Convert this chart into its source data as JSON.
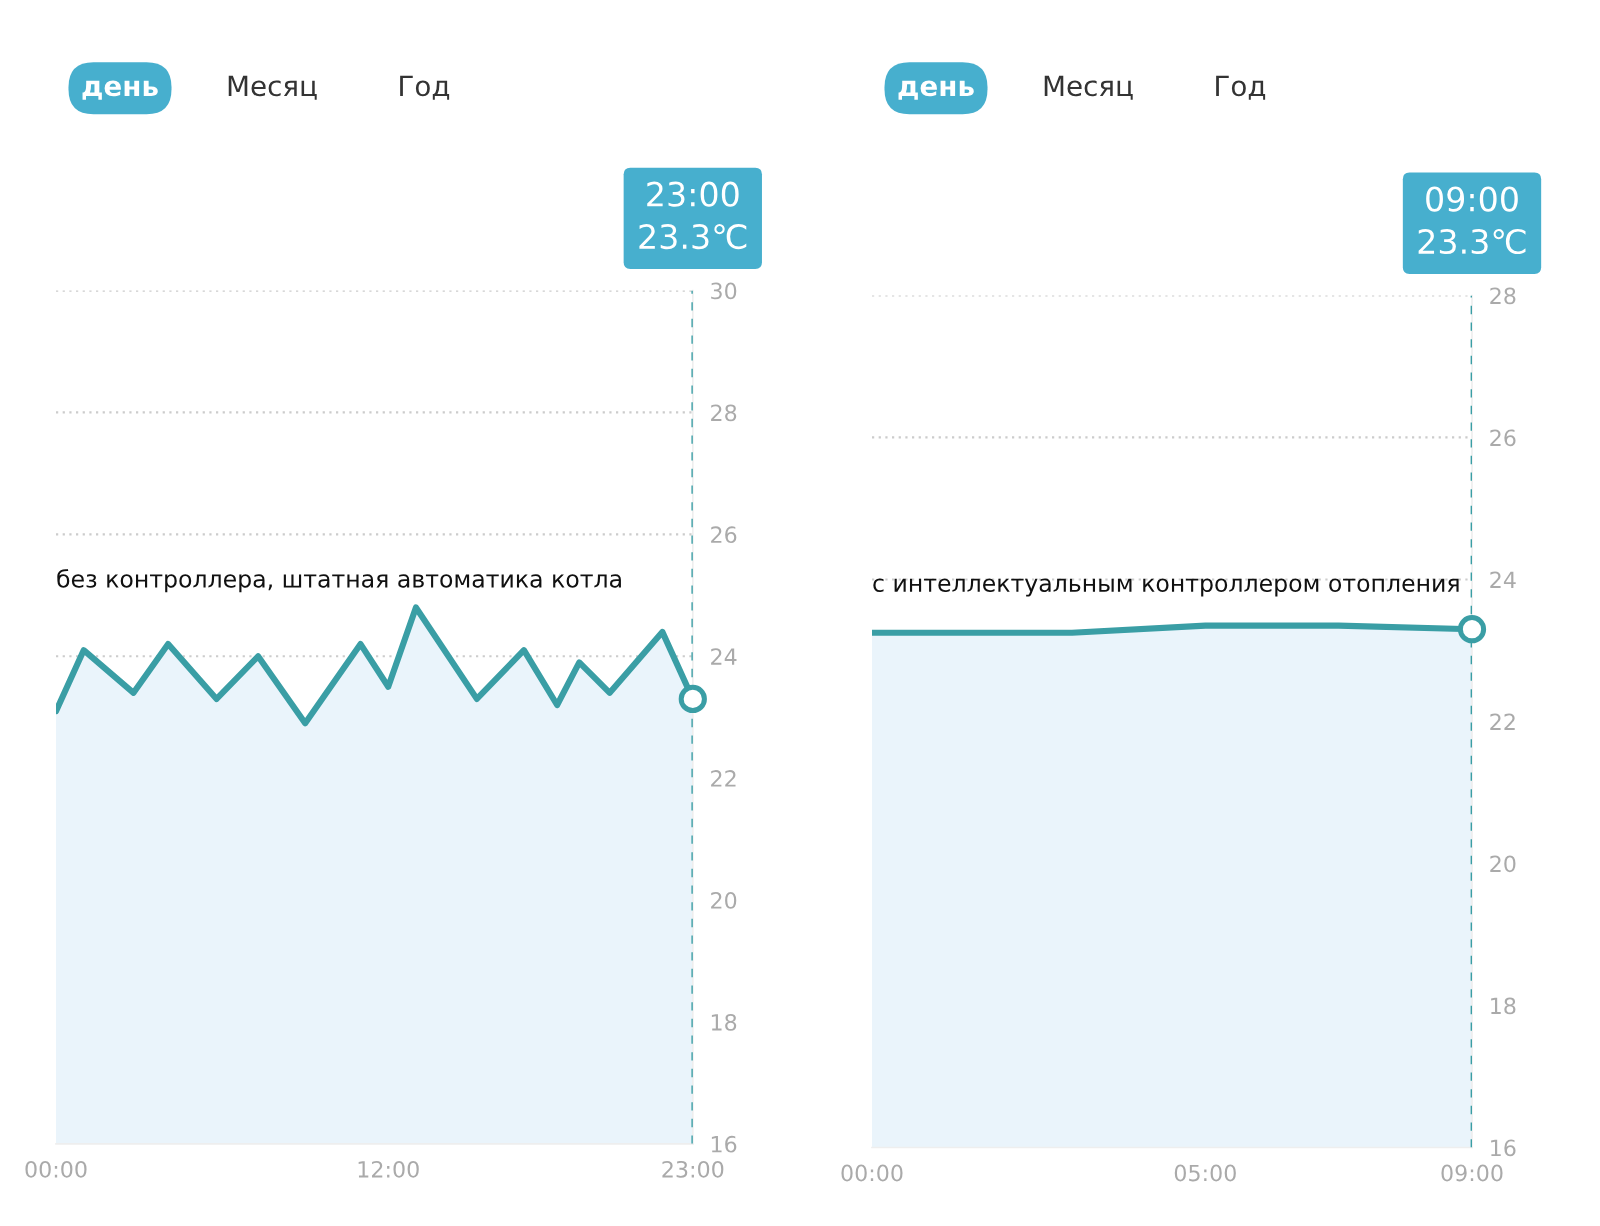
{
  "chart_data": [
    {
      "type": "area",
      "annotations": [
        "день",
        "Месяц",
        "Год",
        "без контроллера, штатная автоматика котла",
        "23:00\n23.3℃"
      ],
      "series": [
        {
          "color": "#3a9ea5",
          "x": [
            0,
            1.0,
            2.8,
            4.05,
            5.8,
            7.3,
            9.0,
            11.0,
            12.0,
            13.0,
            15.2,
            16.9,
            18.1,
            18.9,
            20.0,
            21.9,
            23
          ],
          "values": [
            23.1,
            24.1,
            23.4,
            24.2,
            23.3,
            24.0,
            22.9,
            24.2,
            23.5,
            24.8,
            23.3,
            24.1,
            23.2,
            23.9,
            23.4,
            24.4,
            23.3
          ]
        },
        {
          "type": "scatter",
          "color": "#3a9ea5",
          "marker": "circle",
          "x": [
            23
          ],
          "values": [
            23.3
          ]
        }
      ],
      "xlim": [
        0,
        23
      ],
      "xticks": [
        {
          "value": 0,
          "label": "00:00"
        },
        {
          "value": 12,
          "label": "12:00"
        },
        {
          "value": 23,
          "label": "23:00"
        }
      ],
      "ylim": [
        16,
        30
      ],
      "yticks": [
        16,
        18,
        20,
        22,
        24,
        26,
        28,
        30
      ],
      "grid": "y",
      "ref_lines": [
        {
          "axis": "x",
          "value": 23,
          "color": "#3a9ea5",
          "line_style": "dashed"
        }
      ]
    },
    {
      "type": "area",
      "annotations": [
        "день",
        "Месяц",
        "Год",
        "с интеллектуальным контроллером отопления",
        "09:00\n23.3℃"
      ],
      "series": [
        {
          "color": "#3a9ea5",
          "x": [
            0,
            3,
            5,
            7,
            9
          ],
          "values": [
            23.25,
            23.25,
            23.35,
            23.35,
            23.3
          ]
        },
        {
          "type": "scatter",
          "color": "#3a9ea5",
          "marker": "circle",
          "x": [
            9
          ],
          "values": [
            23.3
          ]
        }
      ],
      "xlim": [
        0,
        9
      ],
      "xticks": [
        {
          "value": 0,
          "label": "00:00"
        },
        {
          "value": 5,
          "label": "05:00"
        },
        {
          "value": 9,
          "label": "09:00"
        }
      ],
      "ylim": [
        16,
        28
      ],
      "yticks": [
        16,
        18,
        20,
        22,
        24,
        26,
        28
      ],
      "grid": "y",
      "ref_lines": [
        {
          "axis": "x",
          "value": 9,
          "color": "#3a9ea5",
          "line_style": "dashed"
        }
      ]
    }
  ]
}
